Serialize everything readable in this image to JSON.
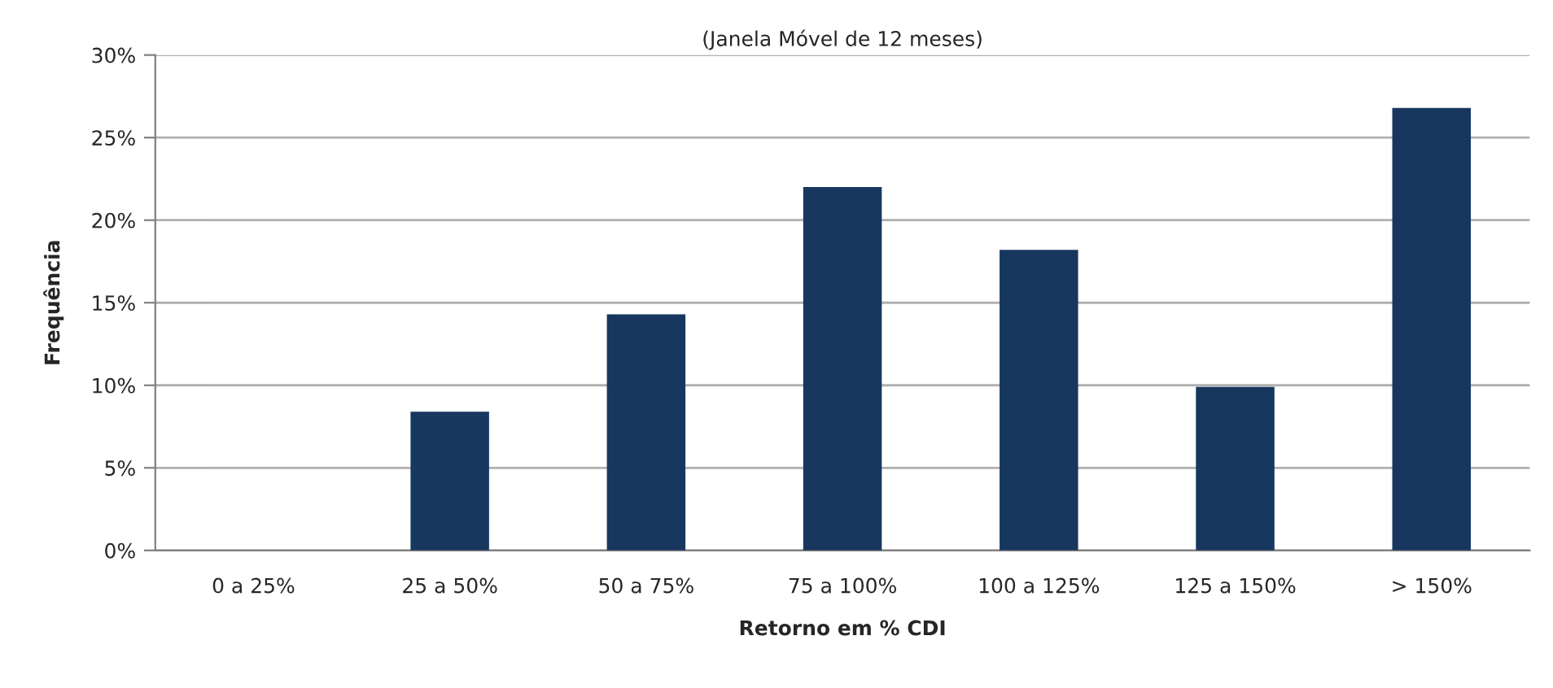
{
  "chart_data": {
    "type": "bar",
    "subtitle": "(Janela Móvel de 12 meses)",
    "xlabel": "Retorno em % CDI",
    "ylabel": "Frequência",
    "categories": [
      "0 a 25%",
      "25 a 50%",
      "50 a 75%",
      "75 a 100%",
      "100 a 125%",
      "125 a 150%",
      "> 150%"
    ],
    "values": [
      0,
      8.4,
      14.3,
      22.0,
      18.2,
      9.9,
      26.8
    ],
    "color": "#17375e",
    "ylim": [
      0,
      30
    ],
    "yticks": [
      {
        "value": 0,
        "label": "0%"
      },
      {
        "value": 5,
        "label": "5%"
      },
      {
        "value": 10,
        "label": "10%"
      },
      {
        "value": 15,
        "label": "15%"
      },
      {
        "value": 20,
        "label": "20%"
      },
      {
        "value": 25,
        "label": "25%"
      },
      {
        "value": 30,
        "label": "30%"
      }
    ],
    "grid": "y"
  }
}
